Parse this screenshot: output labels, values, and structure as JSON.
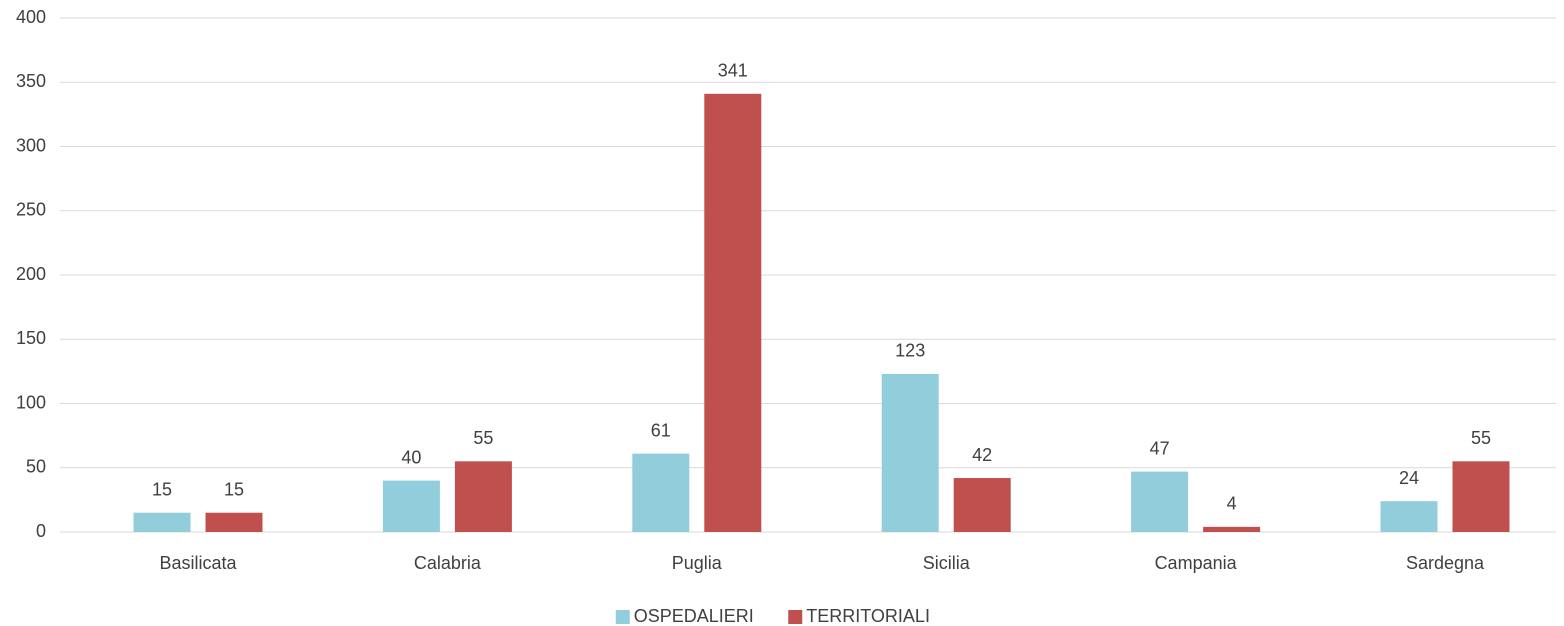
{
  "chart_data": {
    "type": "bar",
    "categories": [
      "Basilicata",
      "Calabria",
      "Puglia",
      "Sicilia",
      "Campania",
      "Sardegna"
    ],
    "series": [
      {
        "name": "OSPEDALIERI",
        "color": "#92cddc",
        "values": [
          15,
          40,
          61,
          123,
          47,
          24
        ]
      },
      {
        "name": "TERRITORIALI",
        "color": "#c0504d",
        "values": [
          15,
          55,
          341,
          42,
          4,
          55
        ]
      }
    ],
    "ylim": [
      0,
      400
    ],
    "yticks": [
      0,
      50,
      100,
      150,
      200,
      250,
      300,
      350,
      400
    ],
    "grid": true,
    "legend": "bottom"
  }
}
